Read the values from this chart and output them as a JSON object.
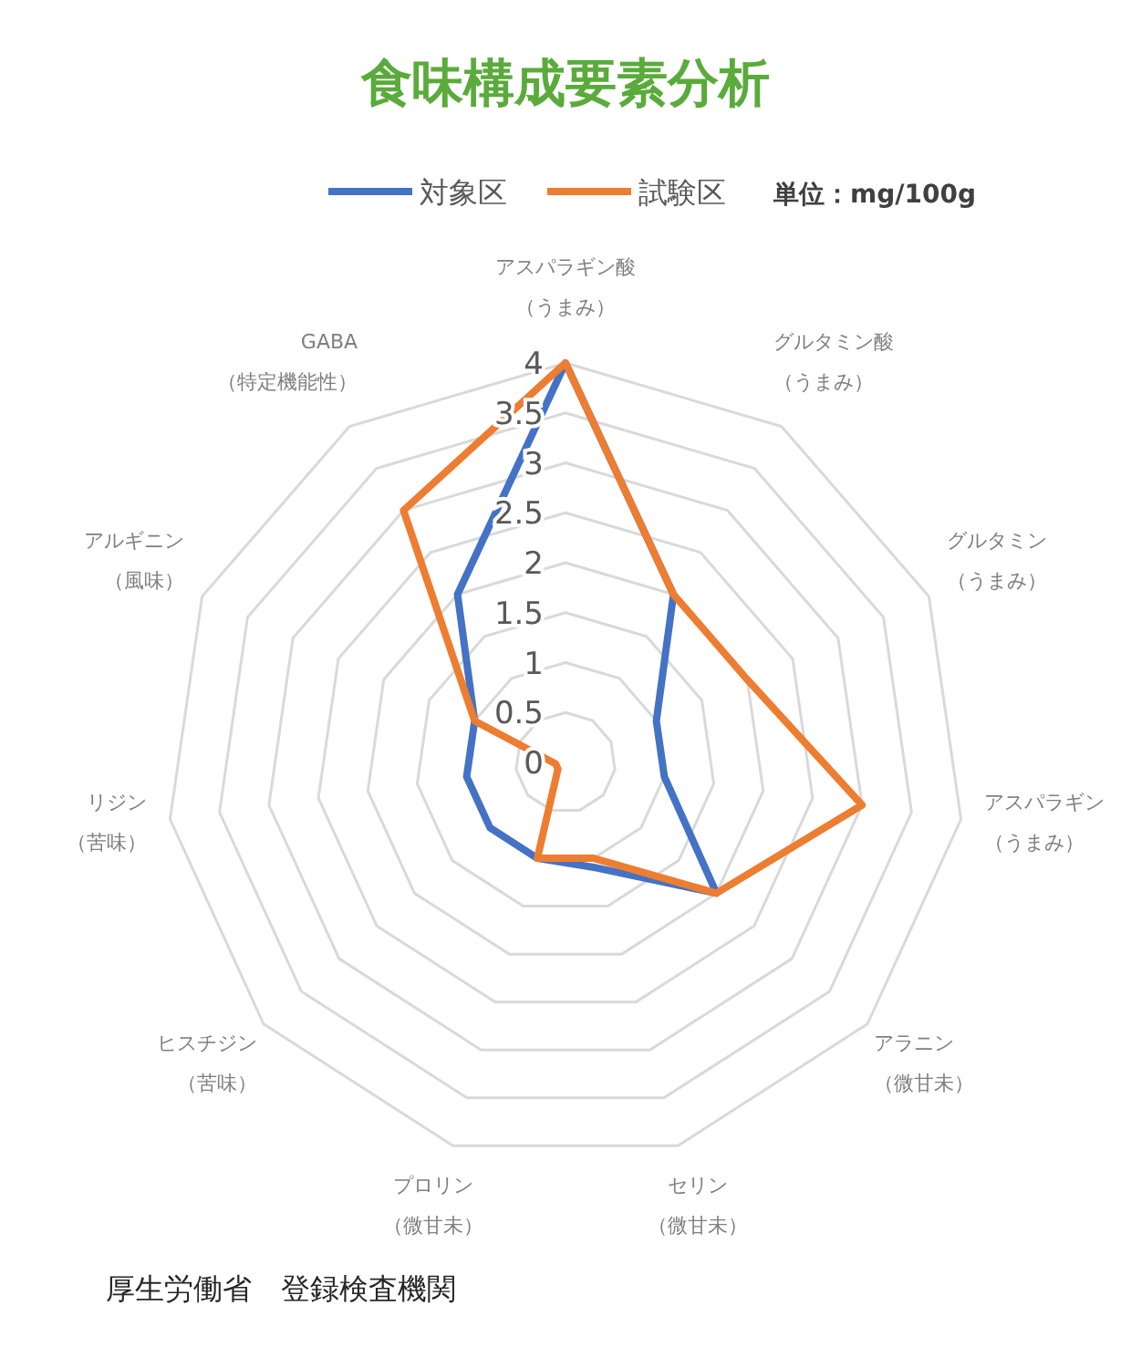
{
  "chart_data": {
    "type": "radar",
    "title": "食味構成要素分析",
    "categories": [
      "アスパラギン酸（うまみ）",
      "グルタミン酸（うまみ）",
      "グルタミン（うまみ）",
      "アスパラギン（うまみ）",
      "アラニン（微甘未）",
      "セリン（微甘未）",
      "プロリン（微甘未）",
      "ヒスチジン（苦味）",
      "リジン（苦味）",
      "アルギニン（風味）",
      "GABA（特定機能性）"
    ],
    "series": [
      {
        "name": "対象区",
        "color": "#4472c4",
        "values": [
          4,
          2,
          1,
          1,
          2,
          1.1,
          1,
          1,
          1,
          1,
          2
        ]
      },
      {
        "name": "試験区",
        "color": "#ed7d31",
        "values": [
          4,
          2,
          2,
          3,
          2,
          1,
          1,
          0.1,
          0.1,
          1,
          3
        ]
      }
    ],
    "ylim": [
      0,
      4
    ],
    "yticks": [
      0,
      0.5,
      1,
      1.5,
      2,
      2.5,
      3,
      3.5,
      4
    ],
    "grid": true,
    "legend": "top",
    "annotations": [
      "単位：mg/100g",
      "厚生労働省　登録検査機関"
    ]
  }
}
